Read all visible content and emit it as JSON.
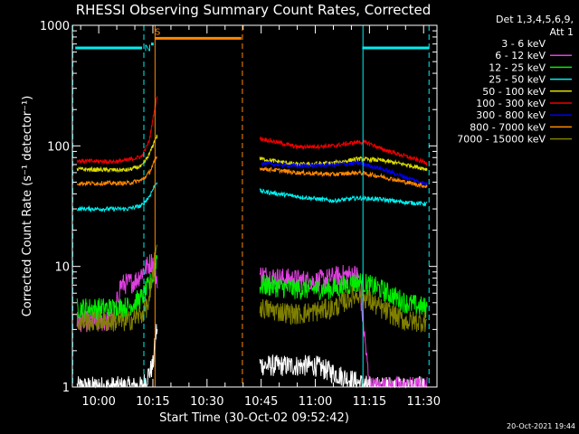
{
  "chart_data": {
    "type": "line",
    "title": "RHESSI Observing Summary Count Rates, Corrected",
    "xlabel": "Start Time (30-Oct-02 09:52:42)",
    "ylabel": "Corrected Count Rate (s⁻¹ detector⁻¹)",
    "yscale": "log",
    "ylim": [
      1,
      1000
    ],
    "xlim_minutes": [
      -7.3,
      93.7
    ],
    "x_ticks": [
      {
        "label": "10:00",
        "min": 0
      },
      {
        "label": "10:15",
        "min": 15
      },
      {
        "label": "10:30",
        "min": 30
      },
      {
        "label": "10:45",
        "min": 45
      },
      {
        "label": "11:00",
        "min": 60
      },
      {
        "label": "11:15",
        "min": 75
      },
      {
        "label": "11:30",
        "min": 90
      }
    ],
    "y_ticks": [
      {
        "label": "1",
        "value": 1
      },
      {
        "label": "10",
        "value": 10
      },
      {
        "label": "100",
        "value": 100
      },
      {
        "label": "1000",
        "value": 1000
      }
    ],
    "legend": {
      "header": [
        "Det 1,3,4,5,6,9,",
        "Att 1"
      ],
      "position": "right"
    },
    "series": [
      {
        "name": "3 - 6 keV",
        "color": "#000000",
        "x": [
          -6,
          4,
          12,
          15,
          16,
          46,
          60,
          75,
          91
        ],
        "values": [
          1,
          1,
          1,
          1.5,
          3,
          1.5,
          1.5,
          1,
          1
        ]
      },
      {
        "name": "6 - 12 keV",
        "color": "#e040e0",
        "x": [
          -6,
          4,
          6,
          10,
          12,
          14,
          15,
          16,
          45,
          50,
          60,
          68,
          72,
          75,
          78,
          91
        ],
        "values": [
          3.5,
          3.5,
          7,
          7.5,
          9,
          10.5,
          11,
          8,
          8.5,
          8,
          7.5,
          8.5,
          8.5,
          1,
          1,
          1
        ]
      },
      {
        "name": "12 - 25 keV",
        "color": "#00ee00",
        "x": [
          -6,
          4,
          8,
          12,
          14,
          15,
          16,
          45,
          55,
          65,
          72,
          78,
          85,
          91
        ],
        "values": [
          4.5,
          4.5,
          4.6,
          5.5,
          7,
          8,
          12,
          7,
          6.5,
          6.5,
          7.5,
          6.5,
          5,
          4.5
        ]
      },
      {
        "name": "25 - 50 keV",
        "color": "#00f0f0",
        "x": [
          -6,
          4,
          8,
          12,
          14,
          16,
          45,
          55,
          65,
          72,
          78,
          85,
          91
        ],
        "values": [
          30,
          30,
          30,
          32,
          38,
          50,
          42,
          38,
          35,
          37,
          36,
          34,
          33
        ]
      },
      {
        "name": "50 - 100 keV",
        "color": "#dddd00",
        "x": [
          -6,
          4,
          8,
          12,
          14,
          16,
          45,
          55,
          65,
          72,
          78,
          85,
          91
        ],
        "values": [
          64,
          63,
          63,
          68,
          85,
          120,
          78,
          70,
          72,
          78,
          76,
          70,
          64
        ]
      },
      {
        "name": "100 - 300 keV",
        "color": "#ee0000",
        "x": [
          -6,
          4,
          8,
          12,
          14,
          16,
          45,
          55,
          65,
          72,
          75,
          78,
          85,
          91
        ],
        "values": [
          75,
          74,
          76,
          82,
          110,
          250,
          115,
          98,
          100,
          108,
          105,
          95,
          82,
          72
        ]
      },
      {
        "name": "300 - 800 keV",
        "color": "#0000ee",
        "x": [
          45,
          55,
          65,
          72,
          78,
          85,
          91
        ],
        "values": [
          72,
          68,
          70,
          72,
          65,
          55,
          48
        ]
      },
      {
        "name": "800 - 7000 keV",
        "color": "#ff8800",
        "x": [
          -6,
          4,
          8,
          12,
          14,
          16,
          45,
          55,
          65,
          72,
          78,
          85,
          91
        ],
        "values": [
          49,
          49,
          49,
          52,
          60,
          80,
          65,
          60,
          58,
          60,
          56,
          50,
          46
        ]
      },
      {
        "name": "7000 - 15000 keV",
        "color": "#808000",
        "x": [
          -6,
          4,
          8,
          12,
          14,
          16,
          45,
          55,
          65,
          72,
          78,
          85,
          91
        ],
        "values": [
          3.5,
          3.5,
          3.5,
          4,
          5,
          15,
          4.5,
          4,
          4.5,
          6,
          4.5,
          3.5,
          3.5
        ]
      }
    ],
    "flags": [
      {
        "label": "N",
        "color": "#00f0f0",
        "x_start": 14.5,
        "x_end": 15.2,
        "value": 700
      },
      {
        "label": "S",
        "color": "#ff8800",
        "x_start": 15.5,
        "x_end": 39.5,
        "value": 780
      },
      {
        "label": "",
        "color": "#00f0f0",
        "x_start": -6.5,
        "x_end": 12,
        "value": 650
      },
      {
        "label": "",
        "color": "#00f0f0",
        "x_start": 73,
        "x_end": 91.5,
        "value": 650
      }
    ],
    "vertical_lines": [
      {
        "x": -7.2,
        "color": "#00f0f0",
        "style": "dashed"
      },
      {
        "x": 12.5,
        "color": "#00f0f0",
        "style": "dashed"
      },
      {
        "x": 15.6,
        "color": "#ff8800",
        "style": "solid"
      },
      {
        "x": 39.8,
        "color": "#ff8800",
        "style": "dashed"
      },
      {
        "x": 73.2,
        "color": "#00f0f0",
        "style": "solid"
      },
      {
        "x": 91.5,
        "color": "#00f0f0",
        "style": "dashed"
      }
    ],
    "footer_timestamp": "20-Oct-2021 19:44"
  }
}
